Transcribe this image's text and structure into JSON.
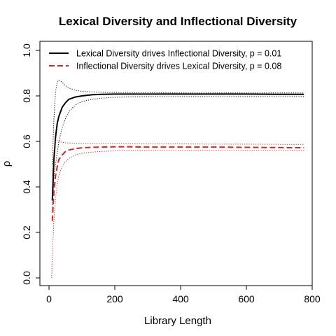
{
  "chart_data": {
    "type": "line",
    "title": "Lexical Diversity and Inflectional Diversity",
    "xlabel": "Library Length",
    "ylabel": "ρ",
    "xlim": [
      0,
      780
    ],
    "ylim": [
      0,
      1
    ],
    "xticks": [
      0,
      200,
      400,
      600,
      800
    ],
    "yticks": [
      0.0,
      0.2,
      0.4,
      0.6,
      0.8,
      1.0
    ],
    "ytick_labels": [
      "0.0",
      "0.2",
      "0.4",
      "0.6",
      "0.8",
      "1.0"
    ],
    "grid": false,
    "legend": "top-left",
    "series": [
      {
        "name": "Lexical Diversity drives Inflectional Diversity, p = 0.01",
        "role": "mean",
        "color": "#000000",
        "linestyle": "solid",
        "x": [
          10,
          15,
          20,
          25,
          30,
          40,
          50,
          60,
          80,
          100,
          130,
          160,
          200,
          250,
          300,
          400,
          500,
          600,
          700,
          775
        ],
        "y": [
          0.34,
          0.52,
          0.62,
          0.68,
          0.71,
          0.75,
          0.77,
          0.785,
          0.795,
          0.8,
          0.805,
          0.807,
          0.808,
          0.808,
          0.808,
          0.808,
          0.808,
          0.808,
          0.807,
          0.807
        ]
      },
      {
        "role": "upper",
        "color": "#000000",
        "linestyle": "dotted",
        "x": [
          10,
          15,
          20,
          25,
          30,
          40,
          50,
          60,
          80,
          100,
          130,
          160,
          200,
          300,
          400,
          500,
          600,
          700,
          775
        ],
        "y": [
          0.5,
          0.7,
          0.82,
          0.86,
          0.87,
          0.86,
          0.845,
          0.835,
          0.825,
          0.82,
          0.818,
          0.816,
          0.815,
          0.814,
          0.813,
          0.813,
          0.813,
          0.813,
          0.813
        ]
      },
      {
        "role": "lower",
        "color": "#000000",
        "linestyle": "dotted",
        "x": [
          10,
          15,
          20,
          25,
          30,
          40,
          50,
          60,
          80,
          100,
          130,
          160,
          200,
          250,
          300,
          400,
          500,
          600,
          700,
          775
        ],
        "y": [
          0.3,
          0.44,
          0.5,
          0.55,
          0.6,
          0.66,
          0.7,
          0.73,
          0.76,
          0.775,
          0.785,
          0.79,
          0.794,
          0.796,
          0.797,
          0.797,
          0.797,
          0.797,
          0.797,
          0.797
        ]
      },
      {
        "name": "Inflectional Diversity drives Lexical Diversity, p = 0.08",
        "role": "mean",
        "color": "#d62728",
        "linestyle": "dashed",
        "x": [
          10,
          15,
          20,
          25,
          30,
          40,
          50,
          60,
          80,
          100,
          130,
          160,
          200,
          250,
          300,
          400,
          500,
          600,
          700,
          775
        ],
        "y": [
          0.25,
          0.38,
          0.45,
          0.49,
          0.52,
          0.54,
          0.555,
          0.562,
          0.568,
          0.572,
          0.574,
          0.575,
          0.576,
          0.576,
          0.575,
          0.575,
          0.575,
          0.574,
          0.573,
          0.572
        ]
      },
      {
        "role": "upper",
        "color": "#d62728",
        "linestyle": "dotted",
        "x": [
          10,
          15,
          20,
          25,
          30,
          40,
          50,
          60,
          80,
          100,
          150,
          200,
          300,
          400,
          500,
          600,
          700,
          775
        ],
        "y": [
          0.45,
          0.56,
          0.6,
          0.605,
          0.6,
          0.596,
          0.594,
          0.593,
          0.592,
          0.591,
          0.59,
          0.59,
          0.589,
          0.589,
          0.588,
          0.588,
          0.587,
          0.587
        ]
      },
      {
        "role": "lower",
        "color": "#d62728",
        "linestyle": "dotted",
        "x": [
          8,
          10,
          15,
          20,
          25,
          30,
          40,
          50,
          60,
          80,
          100,
          130,
          160,
          200,
          300,
          400,
          500,
          600,
          700,
          775
        ],
        "y": [
          0.0,
          0.1,
          0.25,
          0.35,
          0.41,
          0.45,
          0.49,
          0.51,
          0.525,
          0.54,
          0.548,
          0.553,
          0.556,
          0.558,
          0.56,
          0.56,
          0.56,
          0.56,
          0.559,
          0.558
        ]
      }
    ]
  }
}
